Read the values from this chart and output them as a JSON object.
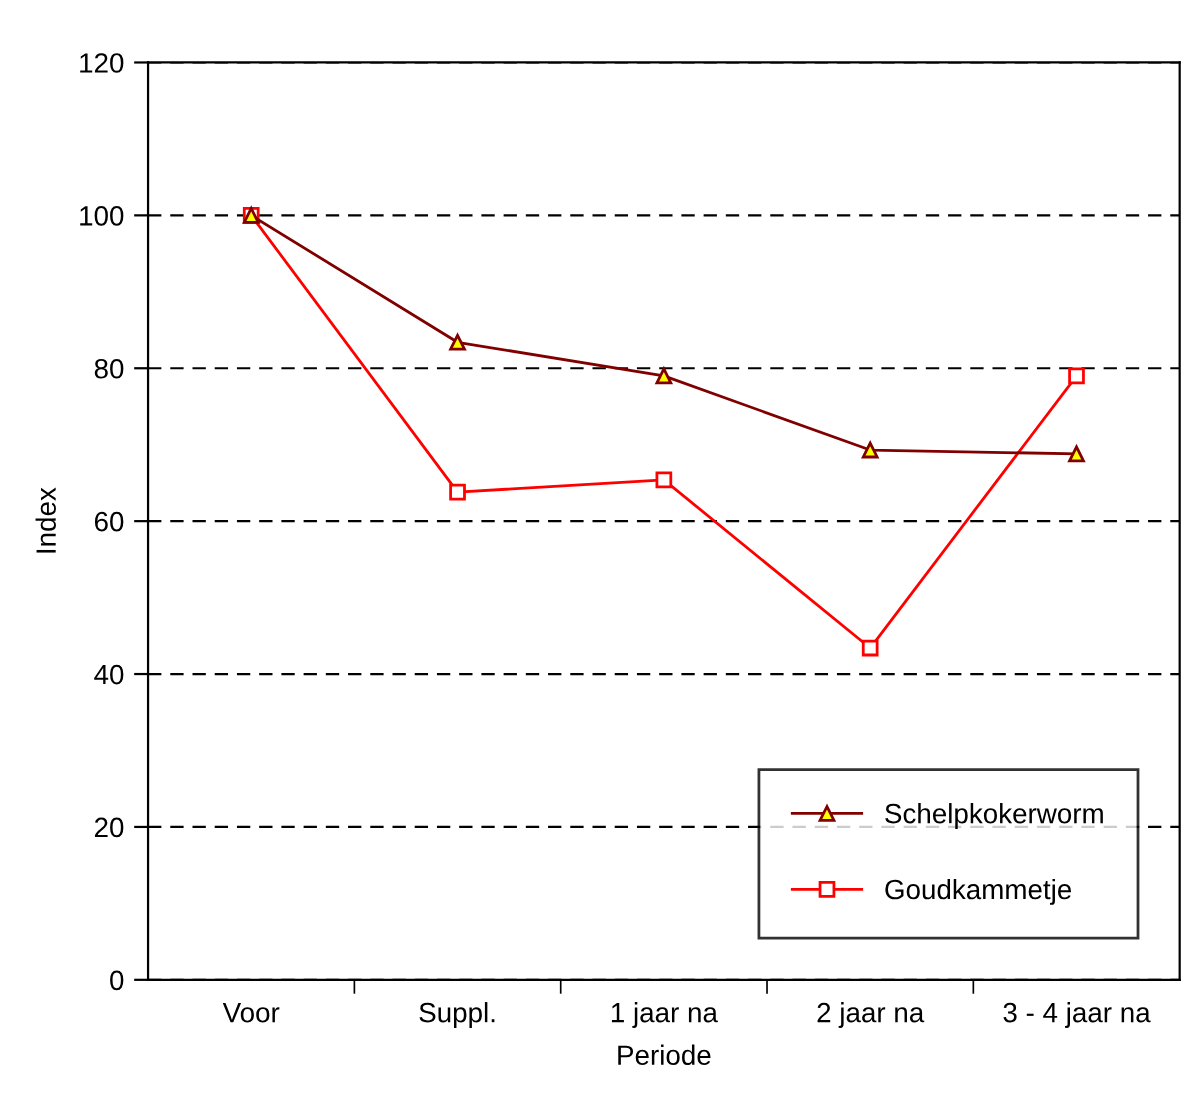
{
  "chart_data": {
    "type": "line",
    "xlabel": "Periode",
    "ylabel": "Index",
    "categories": [
      "Voor",
      "Suppl.",
      "1 jaar na",
      "2 jaar na",
      "3 - 4 jaar na"
    ],
    "series": [
      {
        "name": "Schelpkokerworm",
        "color": "#800000",
        "marker": "triangle",
        "values": [
          100,
          83.4,
          79.0,
          69.3,
          68.8
        ]
      },
      {
        "name": "Goudkammetje",
        "color": "#ff0000",
        "marker": "square",
        "values": [
          100,
          63.8,
          65.4,
          43.4,
          79.0
        ]
      }
    ],
    "ylim": [
      0,
      120
    ],
    "yticks": [
      0,
      20,
      40,
      60,
      80,
      100,
      120
    ],
    "grid": "y",
    "legend": "bottom right",
    "line_style": "solid"
  }
}
